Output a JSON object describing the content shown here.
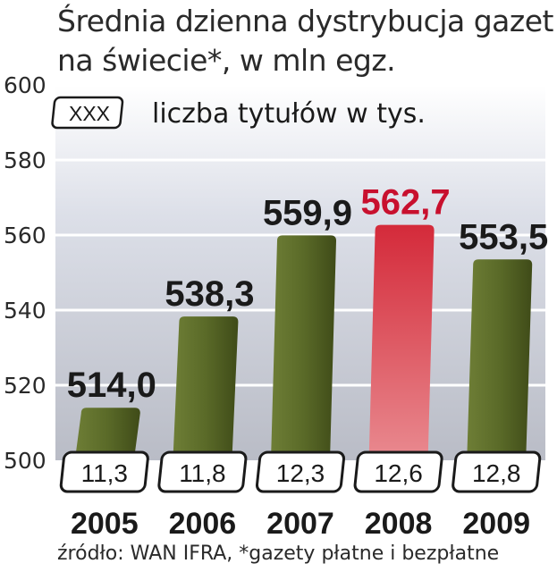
{
  "title_line1": "Średnia dzienna dystrybucja gazet",
  "title_line2": "na świecie*, w mln egz.",
  "legend": {
    "box_label": "XXX",
    "text": "liczba tytułów w tys."
  },
  "source": "źródło: WAN IFRA, *gazety płatne i bezpłatne",
  "colors": {
    "bar": "#5a6a2a",
    "bar_highlight": "#d83a46",
    "highlight_label": "#c8102e",
    "text": "#1a1a1a"
  },
  "chart_data": {
    "type": "bar",
    "title": "Średnia dzienna dystrybucja gazet na świecie*, w mln egz.",
    "categories": [
      "2005",
      "2006",
      "2007",
      "2008",
      "2009"
    ],
    "values": [
      514.0,
      538.3,
      559.9,
      562.7,
      553.5
    ],
    "value_labels": [
      "514,0",
      "538,3",
      "559,9",
      "562,7",
      "553,5"
    ],
    "titles_thousands": [
      "11,3",
      "11,8",
      "12,3",
      "12,6",
      "12,8"
    ],
    "highlight_index": 3,
    "ylim": [
      500,
      600
    ],
    "yticks": [
      500,
      520,
      540,
      560,
      580,
      600
    ],
    "grid": true,
    "legend": "liczba tytułów w tys."
  }
}
